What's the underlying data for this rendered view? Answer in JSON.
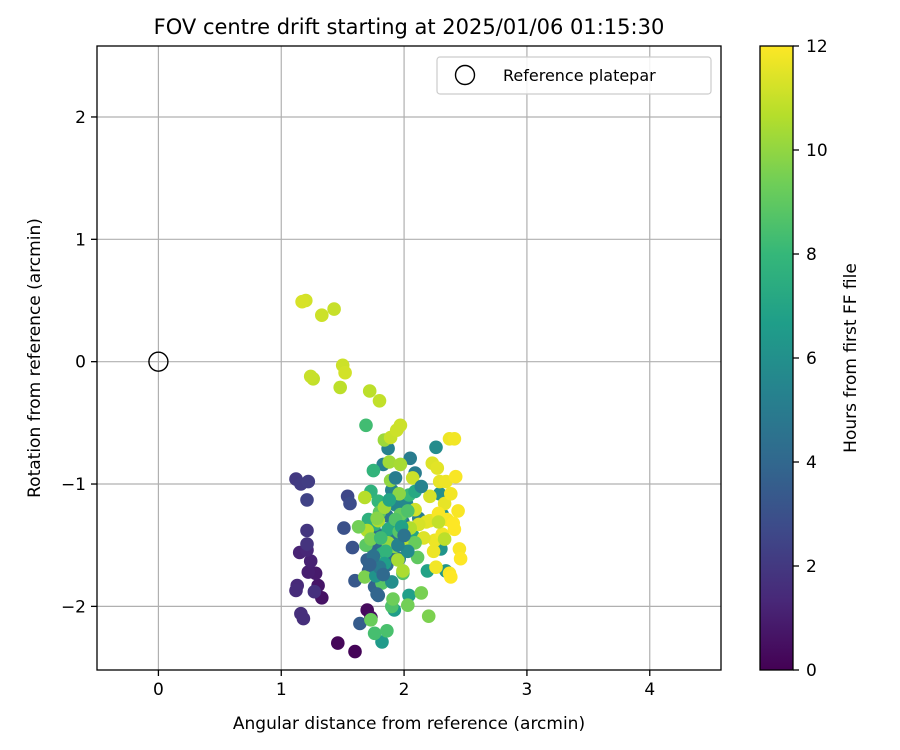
{
  "chart_data": {
    "type": "scatter",
    "title": "FOV centre drift starting at 2025/01/06 01:15:30",
    "xlabel": "Angular distance from reference (arcmin)",
    "ylabel": "Rotation from reference (arcmin)",
    "xlim": [
      -0.5,
      4.58
    ],
    "ylim": [
      -2.52,
      2.58
    ],
    "xticks": [
      0,
      1,
      2,
      3,
      4
    ],
    "yticks": [
      -2,
      -1,
      0,
      1,
      2
    ],
    "x_tick_labels": [
      "0",
      "1",
      "2",
      "3",
      "4"
    ],
    "y_tick_labels": [
      "−2",
      "−1",
      "0",
      "1",
      "2"
    ],
    "grid": true,
    "legend": {
      "placement": "top-right",
      "entries": [
        "Reference platepar"
      ]
    },
    "reference": {
      "name": "Reference platepar",
      "x": 0,
      "y": 0
    },
    "colorbar": {
      "label": "Hours from first FF file",
      "min": 0,
      "max": 12,
      "ticks": [
        0,
        2,
        4,
        6,
        8,
        10,
        12
      ],
      "tick_labels": [
        "0",
        "2",
        "4",
        "6",
        "8",
        "10",
        "12"
      ],
      "colormap": "viridis",
      "stops": [
        "#440154",
        "#482878",
        "#3e4989",
        "#31688e",
        "#26828e",
        "#1f9e89",
        "#35b779",
        "#6ece58",
        "#b5de2b",
        "#fde725"
      ]
    },
    "points": [
      [
        1.6,
        -2.37,
        0.1
      ],
      [
        1.46,
        -2.3,
        0.2
      ],
      [
        1.7,
        -2.03,
        0.3
      ],
      [
        1.73,
        -2.09,
        0.4
      ],
      [
        1.33,
        -1.93,
        0.6
      ],
      [
        1.3,
        -1.83,
        0.7
      ],
      [
        1.28,
        -1.73,
        0.9
      ],
      [
        1.22,
        -1.72,
        1.0
      ],
      [
        1.24,
        -1.63,
        1.1
      ],
      [
        1.15,
        -1.56,
        1.2
      ],
      [
        1.21,
        -1.54,
        1.3
      ],
      [
        1.13,
        -1.83,
        1.4
      ],
      [
        1.12,
        -1.87,
        1.5
      ],
      [
        1.16,
        -2.06,
        1.6
      ],
      [
        1.18,
        -2.1,
        1.6
      ],
      [
        1.27,
        -1.88,
        1.7
      ],
      [
        1.21,
        -1.49,
        1.8
      ],
      [
        1.21,
        -1.38,
        1.9
      ],
      [
        1.12,
        -0.96,
        2.0
      ],
      [
        1.16,
        -1.0,
        2.1
      ],
      [
        1.22,
        -0.98,
        2.2
      ],
      [
        1.21,
        -1.13,
        2.4
      ],
      [
        1.54,
        -1.1,
        2.6
      ],
      [
        1.56,
        -1.16,
        2.8
      ],
      [
        1.51,
        -1.36,
        3.0
      ],
      [
        1.58,
        -1.52,
        3.1
      ],
      [
        1.6,
        -1.79,
        3.3
      ],
      [
        1.64,
        -2.14,
        3.5
      ],
      [
        1.71,
        -1.71,
        3.6
      ],
      [
        1.7,
        -1.62,
        3.7
      ],
      [
        1.76,
        -1.84,
        3.8
      ],
      [
        1.79,
        -1.91,
        3.9
      ],
      [
        1.74,
        -1.52,
        4.0
      ],
      [
        1.82,
        -1.49,
        4.2
      ],
      [
        1.86,
        -1.66,
        4.3
      ],
      [
        1.89,
        -1.58,
        4.4
      ],
      [
        1.78,
        -1.41,
        4.5
      ],
      [
        1.86,
        -1.26,
        4.6
      ],
      [
        1.91,
        -1.44,
        4.7
      ],
      [
        1.96,
        -1.61,
        4.8
      ],
      [
        1.99,
        -1.31,
        4.9
      ],
      [
        2.05,
        -0.79,
        5.0
      ],
      [
        2.09,
        -0.91,
        5.0
      ],
      [
        2.12,
        -1.28,
        5.1
      ],
      [
        1.83,
        -0.84,
        5.2
      ],
      [
        1.87,
        -0.71,
        5.3
      ],
      [
        1.9,
        -1.05,
        5.4
      ],
      [
        1.93,
        -1.17,
        5.5
      ],
      [
        2.02,
        -1.16,
        5.6
      ],
      [
        2.26,
        -0.7,
        5.8
      ],
      [
        2.29,
        -1.08,
        6.0
      ],
      [
        2.31,
        -1.25,
        6.1
      ],
      [
        2.3,
        -1.53,
        6.2
      ],
      [
        2.34,
        -1.71,
        6.3
      ],
      [
        1.82,
        -2.29,
        6.5
      ],
      [
        1.92,
        -2.03,
        6.6
      ],
      [
        2.04,
        -1.91,
        6.7
      ],
      [
        2.19,
        -1.71,
        6.9
      ],
      [
        2.07,
        -1.42,
        7.0
      ],
      [
        1.97,
        -1.27,
        7.1
      ],
      [
        1.92,
        -1.33,
        7.2
      ],
      [
        1.87,
        -1.37,
        7.3
      ],
      [
        1.82,
        -1.57,
        7.4
      ],
      [
        1.76,
        -1.33,
        7.5
      ],
      [
        1.71,
        -1.29,
        7.6
      ],
      [
        1.73,
        -1.06,
        7.7
      ],
      [
        1.75,
        -0.89,
        7.8
      ],
      [
        1.79,
        -1.14,
        7.9
      ],
      [
        2.04,
        -1.09,
        8.0
      ],
      [
        2.08,
        -1.48,
        8.1
      ],
      [
        1.69,
        -0.52,
        8.3
      ],
      [
        1.76,
        -2.22,
        8.4
      ],
      [
        1.86,
        -2.2,
        8.5
      ],
      [
        1.9,
        -2.0,
        8.6
      ],
      [
        1.99,
        -1.73,
        8.7
      ],
      [
        1.82,
        -1.81,
        8.8
      ],
      [
        1.69,
        -1.5,
        8.9
      ],
      [
        1.8,
        -1.23,
        9.0
      ],
      [
        1.97,
        -1.25,
        9.1
      ],
      [
        1.73,
        -2.11,
        9.2
      ],
      [
        1.91,
        -1.94,
        9.3
      ],
      [
        2.03,
        -1.99,
        9.4
      ],
      [
        2.14,
        -1.89,
        9.5
      ],
      [
        2.2,
        -2.08,
        9.6
      ],
      [
        1.76,
        -1.63,
        9.7
      ],
      [
        1.92,
        -1.51,
        9.8
      ],
      [
        1.96,
        -1.08,
        9.9
      ],
      [
        1.89,
        -0.97,
        10.0
      ],
      [
        1.84,
        -0.64,
        10.2
      ],
      [
        1.88,
        -0.82,
        10.3
      ],
      [
        1.97,
        -0.84,
        10.4
      ],
      [
        1.79,
        -1.3,
        10.5
      ],
      [
        1.7,
        -1.38,
        10.6
      ],
      [
        1.68,
        -1.11,
        10.7
      ],
      [
        1.72,
        -0.24,
        10.8
      ],
      [
        1.8,
        -0.32,
        10.9
      ],
      [
        1.89,
        -0.62,
        11.0
      ],
      [
        1.94,
        -0.56,
        11.1
      ],
      [
        1.97,
        -0.52,
        11.1
      ],
      [
        1.48,
        -0.21,
        10.8
      ],
      [
        1.26,
        -0.14,
        10.9
      ],
      [
        1.24,
        -0.12,
        11.0
      ],
      [
        1.5,
        -0.03,
        11.1
      ],
      [
        1.52,
        -0.09,
        11.2
      ],
      [
        1.43,
        0.43,
        11.0
      ],
      [
        1.33,
        0.38,
        11.1
      ],
      [
        1.2,
        0.5,
        11.2
      ],
      [
        1.17,
        0.49,
        11.3
      ],
      [
        2.07,
        -0.95,
        11.1
      ],
      [
        2.09,
        -1.21,
        11.2
      ],
      [
        2.21,
        -1.1,
        11.3
      ],
      [
        2.23,
        -0.83,
        11.4
      ],
      [
        2.27,
        -0.87,
        11.5
      ],
      [
        2.29,
        -0.98,
        11.6
      ],
      [
        2.33,
        -1.16,
        11.6
      ],
      [
        2.37,
        -0.63,
        11.7
      ],
      [
        2.41,
        -0.63,
        11.8
      ],
      [
        2.34,
        -0.98,
        11.7
      ],
      [
        2.38,
        -1.08,
        11.8
      ],
      [
        2.42,
        -0.94,
        11.9
      ],
      [
        2.44,
        -1.22,
        11.9
      ],
      [
        2.41,
        -1.37,
        12.0
      ],
      [
        2.45,
        -1.53,
        11.9
      ],
      [
        2.46,
        -1.61,
        12.0
      ],
      [
        2.37,
        -1.73,
        11.9
      ],
      [
        2.38,
        -1.76,
        12.0
      ],
      [
        2.26,
        -1.68,
        11.8
      ],
      [
        2.25,
        -1.46,
        11.7
      ],
      [
        2.21,
        -1.3,
        11.6
      ],
      [
        2.24,
        -1.55,
        11.7
      ],
      [
        2.31,
        -1.41,
        11.8
      ],
      [
        2.35,
        -1.29,
        11.9
      ],
      [
        2.4,
        -1.32,
        12.0
      ],
      [
        2.28,
        -1.24,
        11.9
      ],
      [
        2.18,
        -1.31,
        11.5
      ],
      [
        2.16,
        -1.44,
        11.4
      ],
      [
        2.12,
        -1.33,
        11.3
      ],
      [
        2.28,
        -1.31,
        10.9
      ],
      [
        2.33,
        -1.45,
        10.8
      ],
      [
        2.05,
        -1.36,
        10.6
      ],
      [
        2.01,
        -1.47,
        10.7
      ],
      [
        1.95,
        -1.62,
        10.4
      ],
      [
        1.99,
        -1.71,
        10.5
      ],
      [
        1.87,
        -1.48,
        10.1
      ],
      [
        1.84,
        -1.19,
        10.3
      ],
      [
        1.78,
        -1.28,
        9.8
      ],
      [
        1.73,
        -1.45,
        9.5
      ],
      [
        1.68,
        -1.76,
        9.6
      ],
      [
        1.63,
        -1.35,
        9.4
      ],
      [
        2.11,
        -1.6,
        9.0
      ],
      [
        2.09,
        -1.48,
        9.2
      ],
      [
        1.96,
        -1.39,
        8.8
      ],
      [
        1.93,
        -1.29,
        8.7
      ],
      [
        2.03,
        -1.22,
        8.6
      ],
      [
        1.81,
        -1.44,
        8.2
      ],
      [
        1.85,
        -1.55,
        7.8
      ],
      [
        2.09,
        -1.06,
        7.2
      ],
      [
        1.88,
        -1.13,
        7.0
      ],
      [
        1.98,
        -1.35,
        6.8
      ],
      [
        1.84,
        -1.65,
        6.7
      ],
      [
        1.77,
        -1.75,
        6.2
      ],
      [
        1.9,
        -1.8,
        5.9
      ],
      [
        2.03,
        -1.55,
        5.7
      ],
      [
        1.95,
        -1.5,
        5.3
      ],
      [
        1.8,
        -1.68,
        4.9
      ],
      [
        1.75,
        -1.59,
        4.5
      ],
      [
        1.83,
        -1.74,
        4.1
      ],
      [
        1.72,
        -1.66,
        3.8
      ],
      [
        1.78,
        -1.9,
        3.9
      ],
      [
        2.0,
        -1.42,
        4.6
      ],
      [
        1.93,
        -0.95,
        5.1
      ],
      [
        2.14,
        -1.02,
        5.4
      ]
    ]
  }
}
